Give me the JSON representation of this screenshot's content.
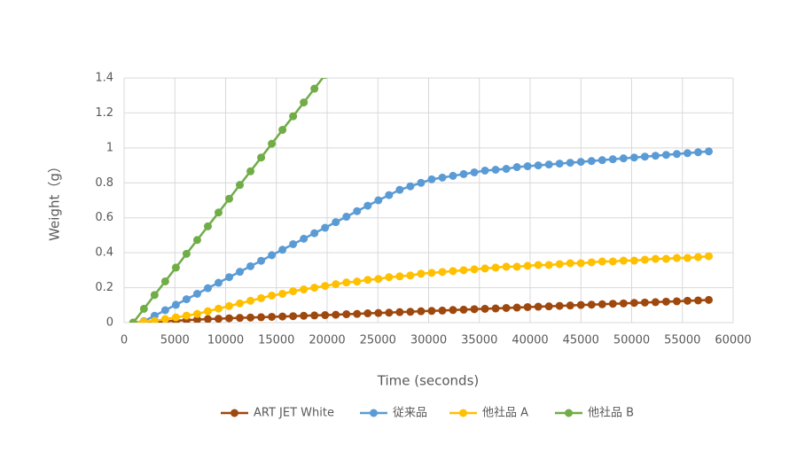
{
  "chart_data": {
    "type": "scatter-line",
    "xlabel": "Time (seconds)",
    "ylabel": "Weight（g）",
    "x": [
      900,
      1950,
      3000,
      4050,
      5100,
      6150,
      7200,
      8250,
      9300,
      10350,
      11400,
      12450,
      13500,
      14550,
      15600,
      16650,
      17700,
      18750,
      19800,
      20850,
      21900,
      22950,
      24000,
      25050,
      26100,
      27150,
      28200,
      29250,
      30300,
      31350,
      32400,
      33450,
      34500,
      35550,
      36600,
      37650,
      38700,
      39750,
      40800,
      41850,
      42900,
      43950,
      45000,
      46050,
      47100,
      48150,
      49200,
      50250,
      51300,
      52350,
      53400,
      54450,
      55500,
      56550,
      57600
    ],
    "series": [
      {
        "name": "ART JET White",
        "color": "#9e480e",
        "values": [
          0,
          0.002,
          0.005,
          0.008,
          0.011,
          0.014,
          0.017,
          0.02,
          0.022,
          0.025,
          0.027,
          0.029,
          0.031,
          0.033,
          0.035,
          0.037,
          0.039,
          0.041,
          0.043,
          0.045,
          0.048,
          0.05,
          0.053,
          0.055,
          0.057,
          0.06,
          0.062,
          0.065,
          0.067,
          0.069,
          0.072,
          0.074,
          0.077,
          0.079,
          0.081,
          0.084,
          0.086,
          0.089,
          0.091,
          0.093,
          0.096,
          0.098,
          0.101,
          0.103,
          0.105,
          0.108,
          0.11,
          0.113,
          0.115,
          0.117,
          0.12,
          0.122,
          0.125,
          0.127,
          0.13
        ]
      },
      {
        "name": "従来品",
        "color": "#5b9bd5",
        "values": [
          0,
          0.008,
          0.039,
          0.071,
          0.102,
          0.134,
          0.165,
          0.197,
          0.228,
          0.26,
          0.291,
          0.323,
          0.354,
          0.386,
          0.417,
          0.449,
          0.48,
          0.512,
          0.543,
          0.575,
          0.606,
          0.638,
          0.669,
          0.7,
          0.73,
          0.76,
          0.78,
          0.8,
          0.82,
          0.83,
          0.84,
          0.85,
          0.86,
          0.87,
          0.875,
          0.88,
          0.89,
          0.895,
          0.9,
          0.905,
          0.91,
          0.915,
          0.92,
          0.925,
          0.93,
          0.935,
          0.94,
          0.945,
          0.95,
          0.955,
          0.96,
          0.965,
          0.97,
          0.975,
          0.98
        ]
      },
      {
        "name": "他社品 A",
        "color": "#ffc000",
        "values": [
          0,
          0.005,
          0.01,
          0.02,
          0.03,
          0.04,
          0.05,
          0.065,
          0.08,
          0.095,
          0.11,
          0.125,
          0.14,
          0.155,
          0.165,
          0.18,
          0.19,
          0.2,
          0.21,
          0.22,
          0.23,
          0.235,
          0.245,
          0.25,
          0.26,
          0.265,
          0.27,
          0.28,
          0.285,
          0.29,
          0.295,
          0.3,
          0.305,
          0.31,
          0.315,
          0.32,
          0.32,
          0.325,
          0.33,
          0.33,
          0.335,
          0.34,
          0.34,
          0.345,
          0.35,
          0.35,
          0.355,
          0.355,
          0.36,
          0.365,
          0.365,
          0.37,
          0.37,
          0.375,
          0.38
        ]
      },
      {
        "name": "他社品 B",
        "color": "#70ad47",
        "values": [
          0,
          0.079,
          0.158,
          0.236,
          0.315,
          0.394,
          0.473,
          0.551,
          0.63,
          0.709,
          0.788,
          0.866,
          0.945,
          1.024,
          1.103,
          1.181,
          1.26,
          1.339,
          1.418,
          null,
          null,
          null,
          null,
          null,
          null,
          null,
          null,
          null,
          null,
          null,
          null,
          null,
          null,
          null,
          null,
          null,
          null,
          null,
          null,
          null,
          null,
          null,
          null,
          null,
          null,
          null,
          null,
          null,
          null,
          null,
          null,
          null,
          null,
          null,
          null
        ]
      }
    ],
    "xlim": [
      0,
      60000
    ],
    "xticks": [
      0,
      5000,
      10000,
      15000,
      20000,
      25000,
      30000,
      35000,
      40000,
      45000,
      50000,
      55000,
      60000
    ],
    "ylim": [
      0,
      1.4
    ],
    "yticks": [
      0,
      0.2,
      0.4,
      0.6,
      0.8,
      1,
      1.2,
      1.4
    ],
    "grid": true,
    "legend": "bottom"
  }
}
